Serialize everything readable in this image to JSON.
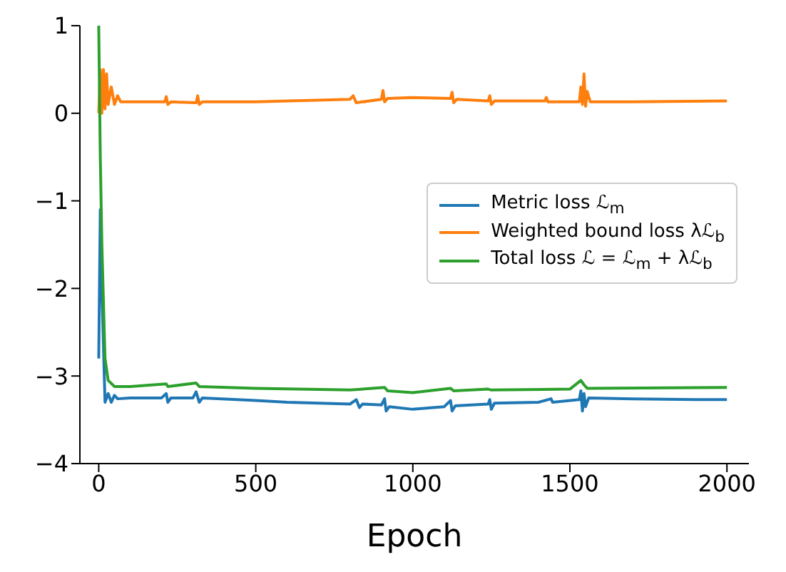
{
  "chart_data": {
    "type": "line",
    "xlabel": "Epoch",
    "xlim": [
      -60,
      2070
    ],
    "xticks": [
      0,
      500,
      1000,
      1500,
      2000
    ],
    "ylim": [
      -4,
      1
    ],
    "yticks": [
      1,
      0,
      -1,
      -2,
      -3,
      -4
    ],
    "grid": false,
    "legend": "right",
    "marker": "none",
    "line_style": "solid",
    "series": [
      {
        "name": "Metric loss ℒ$_{m}$",
        "color": "#1f77b4",
        "x": [
          0,
          5,
          10,
          20,
          30,
          40,
          50,
          60,
          100,
          200,
          215,
          220,
          230,
          300,
          310,
          320,
          330,
          500,
          600,
          800,
          820,
          830,
          840,
          900,
          910,
          915,
          925,
          1000,
          1100,
          1120,
          1125,
          1135,
          1240,
          1245,
          1250,
          1260,
          1400,
          1440,
          1445,
          1530,
          1535,
          1540,
          1545,
          1550,
          1560,
          1700,
          1900,
          2000
        ],
        "values": [
          -2.8,
          -1.1,
          -2.0,
          -3.3,
          -3.2,
          -3.3,
          -3.22,
          -3.26,
          -3.25,
          -3.25,
          -3.2,
          -3.3,
          -3.25,
          -3.25,
          -3.18,
          -3.3,
          -3.25,
          -3.28,
          -3.3,
          -3.32,
          -3.27,
          -3.36,
          -3.32,
          -3.33,
          -3.26,
          -3.4,
          -3.35,
          -3.38,
          -3.35,
          -3.28,
          -3.4,
          -3.34,
          -3.32,
          -3.27,
          -3.38,
          -3.31,
          -3.3,
          -3.26,
          -3.3,
          -3.27,
          -3.17,
          -3.4,
          -3.2,
          -3.35,
          -3.25,
          -3.26,
          -3.27,
          -3.27
        ]
      },
      {
        "name": "Weighted bound loss λℒ$_{b}$",
        "color": "#ff7f0e",
        "x": [
          0,
          5,
          10,
          15,
          20,
          25,
          30,
          40,
          50,
          60,
          70,
          100,
          210,
          215,
          220,
          230,
          310,
          315,
          320,
          330,
          500,
          800,
          810,
          820,
          900,
          905,
          910,
          920,
          1000,
          1120,
          1125,
          1130,
          1140,
          1240,
          1245,
          1250,
          1260,
          1420,
          1425,
          1430,
          1530,
          1535,
          1540,
          1545,
          1550,
          1555,
          1565,
          1700,
          2000
        ],
        "values": [
          0.0,
          0.5,
          0.0,
          0.5,
          0.05,
          0.45,
          0.1,
          0.3,
          0.1,
          0.2,
          0.13,
          0.13,
          0.13,
          0.19,
          0.1,
          0.13,
          0.12,
          0.2,
          0.1,
          0.13,
          0.13,
          0.16,
          0.2,
          0.12,
          0.16,
          0.26,
          0.13,
          0.17,
          0.18,
          0.17,
          0.24,
          0.12,
          0.16,
          0.14,
          0.2,
          0.1,
          0.14,
          0.14,
          0.18,
          0.13,
          0.13,
          0.3,
          0.1,
          0.45,
          0.08,
          0.25,
          0.13,
          0.13,
          0.14
        ]
      },
      {
        "name": "Total loss ℒ = ℒ$_{m}$ + λℒ$_{b}$",
        "color": "#2ca02c",
        "x": [
          0,
          5,
          10,
          20,
          30,
          50,
          100,
          215,
          220,
          310,
          320,
          500,
          800,
          910,
          920,
          1000,
          1120,
          1130,
          1240,
          1250,
          1500,
          1535,
          1545,
          1555,
          2000
        ],
        "values": [
          1.0,
          -0.5,
          -1.5,
          -2.8,
          -3.05,
          -3.12,
          -3.12,
          -3.09,
          -3.12,
          -3.08,
          -3.12,
          -3.14,
          -3.16,
          -3.13,
          -3.17,
          -3.19,
          -3.14,
          -3.17,
          -3.15,
          -3.16,
          -3.15,
          -3.05,
          -3.1,
          -3.14,
          -3.13
        ]
      }
    ]
  }
}
